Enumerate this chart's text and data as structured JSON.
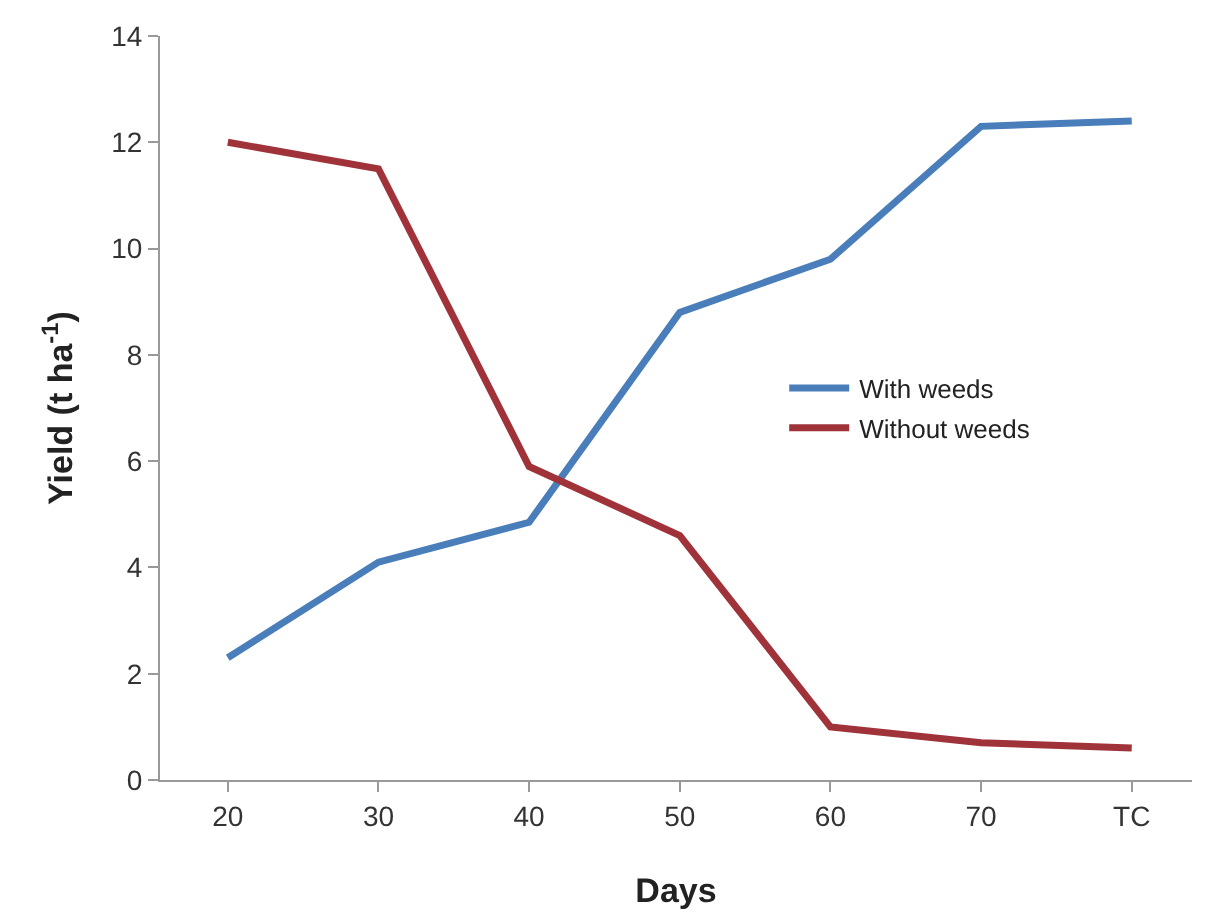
{
  "chart_data": {
    "type": "line",
    "xlabel": "Days",
    "ylabel": "Yield (t ha$^{-1}$)",
    "categories": [
      "20",
      "30",
      "40",
      "50",
      "60",
      "70",
      "TC"
    ],
    "series": [
      {
        "name": "With weeds",
        "color": "#4a7ebb",
        "values": [
          2.3,
          4.1,
          4.85,
          8.8,
          9.8,
          12.3,
          12.4
        ]
      },
      {
        "name": "Without weeds",
        "color": "#a0333a",
        "values": [
          12.0,
          11.5,
          5.9,
          4.6,
          1.0,
          0.7,
          0.6
        ]
      }
    ],
    "ylim": [
      0,
      14
    ],
    "yticks": [
      0,
      2,
      4,
      6,
      8,
      10,
      12,
      14
    ],
    "grid": false,
    "legend": "right",
    "marker": "none",
    "line_style": "solid"
  }
}
